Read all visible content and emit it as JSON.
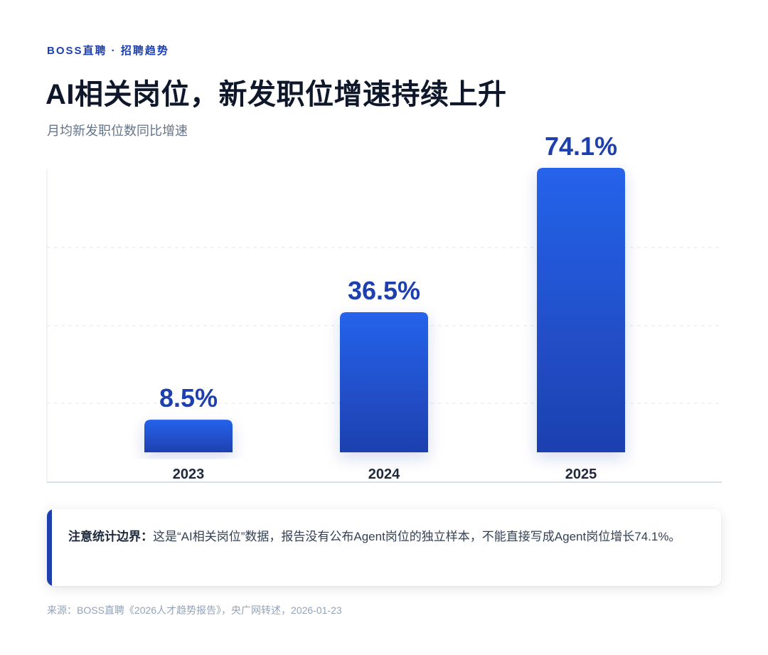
{
  "header": {
    "eyebrow": "BOSS直聘 · 招聘趋势",
    "title": "AI相关岗位，新发职位增速持续上升",
    "subtitle": "月均新发职位数同比增速"
  },
  "chart_data": {
    "type": "bar",
    "title": "AI相关岗位，新发职位增速持续上升",
    "subtitle": "月均新发职位数同比增速",
    "categories": [
      "2023",
      "2024",
      "2025"
    ],
    "values": [
      8.5,
      36.5,
      74.1
    ],
    "value_labels": [
      "8.5%",
      "36.5%",
      "74.1%"
    ],
    "unit": "%",
    "ylim": [
      0,
      80
    ],
    "grid": true,
    "legend": "none",
    "bar_color_top": "#2563eb",
    "bar_color_bottom": "#1e40af",
    "label_color": "#1e40af"
  },
  "note": {
    "label": "注意统计边界：",
    "text": "这是“AI相关岗位”数据，报告没有公布Agent岗位的独立样本，不能直接写成Agent岗位增长74.1%。",
    "accent": "#1e40af"
  },
  "source": "来源：BOSS直聘《2026人才趋势报告》，央广网转述，2026-01-23"
}
